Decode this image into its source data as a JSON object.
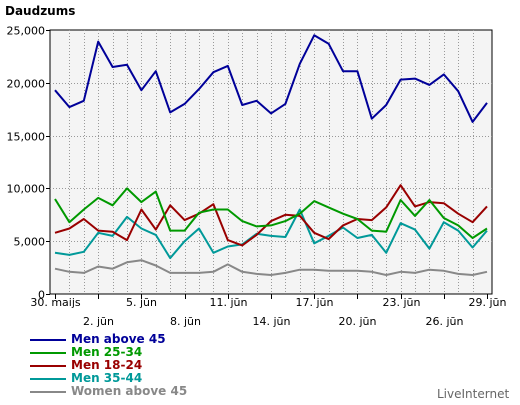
{
  "chart_data": {
    "type": "line",
    "ylabel": "Daudzums",
    "ylim": [
      0,
      25000
    ],
    "yticks": [
      0,
      5000,
      10000,
      15000,
      20000,
      25000
    ],
    "ytick_labels": [
      "0",
      "5,000",
      "10,000",
      "15,000",
      "20,000",
      "25,000"
    ],
    "x": [
      "30. maijs",
      "31",
      "1",
      "2. jūn",
      "3",
      "4",
      "5. jūn",
      "6",
      "7",
      "8. jūn",
      "9",
      "10",
      "11. jūn",
      "12",
      "13",
      "14. jūn",
      "15",
      "16",
      "17. jūn",
      "18",
      "19",
      "20. jūn",
      "21",
      "22",
      "23. jūn",
      "24",
      "25",
      "26. jūn",
      "27",
      "28",
      "29. jūn"
    ],
    "xtick_labels": [
      "30. maijs",
      "2. jūn",
      "5. jūn",
      "8. jūn",
      "11. jūn",
      "14. jūn",
      "17. jūn",
      "20. jūn",
      "23. jūn",
      "26. jūn",
      "29. jūn"
    ],
    "xtick_indices": [
      0,
      3,
      6,
      9,
      12,
      15,
      18,
      21,
      24,
      27,
      30
    ],
    "xtick_rows": [
      0,
      1,
      0,
      1,
      0,
      1,
      0,
      1,
      0,
      1,
      0
    ],
    "grid": true,
    "series": [
      {
        "name": "Men above 45",
        "color": "#000099",
        "values": [
          19300,
          17700,
          18300,
          23900,
          21500,
          21700,
          19300,
          21100,
          17200,
          18000,
          19400,
          21000,
          21600,
          17900,
          18300,
          17100,
          18000,
          21800,
          24500,
          23700,
          21100,
          21100,
          16600,
          17900,
          20300,
          20400,
          19800,
          20800,
          19200,
          16300,
          18100
        ]
      },
      {
        "name": "Men 25-34",
        "color": "#009900",
        "values": [
          9000,
          6800,
          8000,
          9100,
          8400,
          10000,
          8700,
          9700,
          6000,
          6000,
          7700,
          8000,
          8000,
          6900,
          6400,
          6500,
          6900,
          7600,
          8800,
          8200,
          7600,
          7100,
          6000,
          5900,
          8900,
          7400,
          8900,
          7200,
          6500,
          5300,
          6200
        ]
      },
      {
        "name": "Men 18-24",
        "color": "#990000",
        "values": [
          5800,
          6200,
          7100,
          6000,
          5900,
          5100,
          8000,
          6100,
          8400,
          7000,
          7600,
          8500,
          5100,
          4600,
          5600,
          6900,
          7500,
          7400,
          5800,
          5200,
          6500,
          7100,
          7000,
          8200,
          10300,
          8300,
          8700,
          8600,
          7600,
          6800,
          8300
        ]
      },
      {
        "name": "Men 35-44",
        "color": "#009999",
        "values": [
          3900,
          3700,
          4000,
          5800,
          5500,
          7300,
          6200,
          5600,
          3400,
          5000,
          6200,
          3900,
          4500,
          4700,
          5700,
          5500,
          5400,
          8000,
          4800,
          5500,
          6300,
          5300,
          5600,
          3900,
          6700,
          6100,
          4300,
          6800,
          6000,
          4400,
          6000
        ]
      },
      {
        "name": "Women above 45",
        "color": "#888888",
        "values": [
          2400,
          2100,
          2000,
          2600,
          2400,
          3000,
          3200,
          2700,
          2000,
          2000,
          2000,
          2100,
          2800,
          2100,
          1900,
          1800,
          2000,
          2300,
          2300,
          2200,
          2200,
          2200,
          2100,
          1800,
          2100,
          2000,
          2300,
          2200,
          1900,
          1800,
          2100
        ]
      }
    ]
  },
  "branding": {
    "credit": "LiveInternet"
  }
}
